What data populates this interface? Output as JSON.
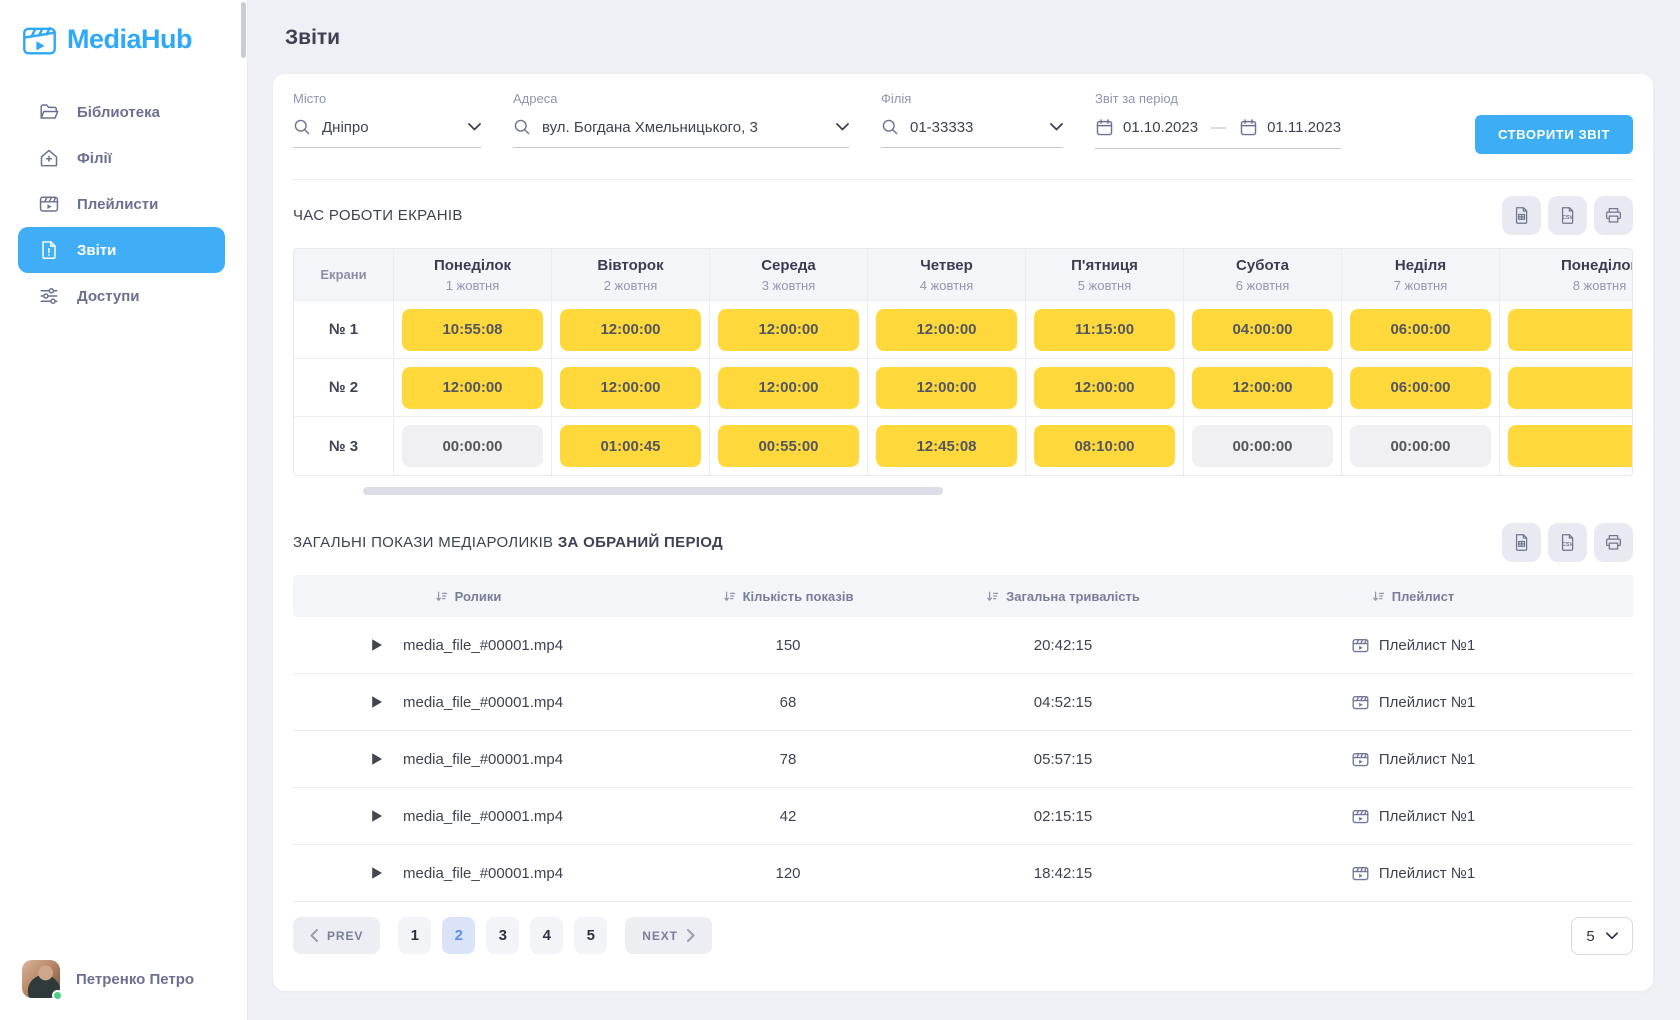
{
  "brand": {
    "name": "MediaHub",
    "color": "#2FA8F8"
  },
  "sidebar": {
    "items": [
      {
        "label": "Біблиотека",
        "icon": "folder-icon",
        "active": false
      },
      {
        "label": "Філії",
        "icon": "branches-icon",
        "active": false
      },
      {
        "label": "Плейлисти",
        "icon": "playlists-icon",
        "active": false
      },
      {
        "label": "Звіти",
        "icon": "reports-icon",
        "active": true
      },
      {
        "label": "Доступи",
        "icon": "access-icon",
        "active": false
      }
    ],
    "user": {
      "name": "Петренко Петро",
      "status": "online"
    }
  },
  "page": {
    "title": "Звіти"
  },
  "filters": {
    "city": {
      "label": "Місто",
      "value": "Дніпро"
    },
    "address": {
      "label": "Адреса",
      "value": "вул. Богдана Хмельницького, 3"
    },
    "branch": {
      "label": "Філія",
      "value": "01-33333"
    },
    "period": {
      "label": "Звіт за період",
      "from": "01.10.2023",
      "separator": "—",
      "to": "01.11.2023"
    },
    "create_button": "СТВОРИТИ ЗВІТ"
  },
  "screens_table": {
    "title": "ЧАС РОБОТИ ЕКРАНІВ",
    "screens_header": "Екрани",
    "days": [
      {
        "name": "Понеділок",
        "date": "1 жовтня"
      },
      {
        "name": "Вівторок",
        "date": "2 жовтня"
      },
      {
        "name": "Середа",
        "date": "3 жовтня"
      },
      {
        "name": "Четвер",
        "date": "4 жовтня"
      },
      {
        "name": "П'ятниця",
        "date": "5 жовтня"
      },
      {
        "name": "Субота",
        "date": "6 жовтня"
      },
      {
        "name": "Неділя",
        "date": "7 жовтня"
      },
      {
        "name": "Понеділок",
        "date": "8 жовтня"
      }
    ],
    "rows": [
      {
        "screen": "№ 1",
        "times": [
          {
            "value": "10:55:08",
            "active": true
          },
          {
            "value": "12:00:00",
            "active": true
          },
          {
            "value": "12:00:00",
            "active": true
          },
          {
            "value": "12:00:00",
            "active": true
          },
          {
            "value": "11:15:00",
            "active": true
          },
          {
            "value": "04:00:00",
            "active": true
          },
          {
            "value": "06:00:00",
            "active": true
          },
          {
            "value": "",
            "active": true
          }
        ]
      },
      {
        "screen": "№ 2",
        "times": [
          {
            "value": "12:00:00",
            "active": true
          },
          {
            "value": "12:00:00",
            "active": true
          },
          {
            "value": "12:00:00",
            "active": true
          },
          {
            "value": "12:00:00",
            "active": true
          },
          {
            "value": "12:00:00",
            "active": true
          },
          {
            "value": "12:00:00",
            "active": true
          },
          {
            "value": "06:00:00",
            "active": true
          },
          {
            "value": "",
            "active": true
          }
        ]
      },
      {
        "screen": "№ 3",
        "times": [
          {
            "value": "00:00:00",
            "active": false
          },
          {
            "value": "01:00:45",
            "active": true
          },
          {
            "value": "00:55:00",
            "active": true
          },
          {
            "value": "12:45:08",
            "active": true
          },
          {
            "value": "08:10:00",
            "active": true
          },
          {
            "value": "00:00:00",
            "active": false
          },
          {
            "value": "00:00:00",
            "active": false
          },
          {
            "value": "",
            "active": true
          }
        ]
      }
    ]
  },
  "media_table": {
    "title": "ЗАГАЛЬНІ ПОКАЗИ МЕДІАРОЛИКІВ ",
    "title_bold": "ЗА ОБРАНИЙ ПЕРІОД",
    "columns": [
      "Ролики",
      "Кількість показів",
      "Загальна тривалість",
      "Плейлист"
    ],
    "rows": [
      {
        "file": "media_file_#00001.mp4",
        "plays": "150",
        "duration": "20:42:15",
        "playlist": "Плейлист №1"
      },
      {
        "file": "media_file_#00001.mp4",
        "plays": "68",
        "duration": "04:52:15",
        "playlist": "Плейлист №1"
      },
      {
        "file": "media_file_#00001.mp4",
        "plays": "78",
        "duration": "05:57:15",
        "playlist": "Плейлист №1"
      },
      {
        "file": "media_file_#00001.mp4",
        "plays": "42",
        "duration": "02:15:15",
        "playlist": "Плейлист №1"
      },
      {
        "file": "media_file_#00001.mp4",
        "plays": "120",
        "duration": "18:42:15",
        "playlist": "Плейлист №1"
      }
    ]
  },
  "pagination": {
    "prev_label": "PREV",
    "next_label": "NEXT",
    "pages": [
      "1",
      "2",
      "3",
      "4",
      "5"
    ],
    "active_page": "2",
    "per_page": "5"
  },
  "toolbar_icons": [
    "xls-export",
    "csv-export",
    "print"
  ],
  "colors": {
    "accent_blue": "#3DAEF5",
    "brand_blue": "#2FA8F8",
    "chip_yellow": "#FFD93B",
    "chip_gray": "#F0F0F2",
    "page_background": "#EFF0F6",
    "active_page_bg": "#DBE3F8",
    "active_page_text": "#5C8EF0",
    "online_green": "#4ECD84"
  }
}
